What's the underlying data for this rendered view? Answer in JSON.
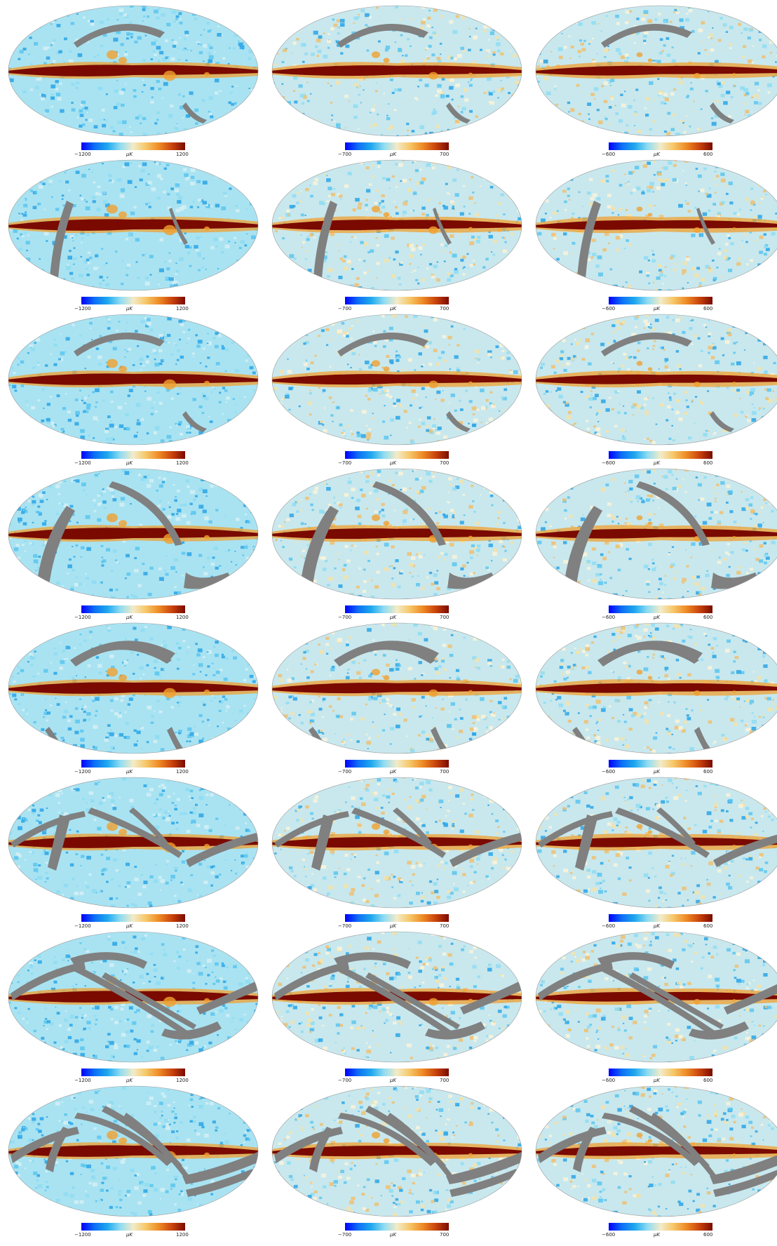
{
  "colors": {
    "background": "#ffffff",
    "mask_gray": "#808080",
    "cold_blue": "#1a8fe0",
    "light_cyan": "#a9e3f2",
    "cream": "#f4e6b4",
    "orange": "#f0a030",
    "dark_red": "#7a0a00"
  },
  "colormap": [
    "#0000ff",
    "#0d6ef5",
    "#1ea8ee",
    "#8fdcf2",
    "#f3ebc8",
    "#f6c667",
    "#ee8a25",
    "#c9430c",
    "#7a0a00"
  ],
  "columns": [
    {
      "scale": {
        "min": "−1200",
        "unit": "μK",
        "max": "1200"
      }
    },
    {
      "scale": {
        "min": "−700",
        "unit": "μK",
        "max": "700"
      }
    },
    {
      "scale": {
        "min": "−600",
        "unit": "μK",
        "max": "600"
      }
    }
  ],
  "row_count": 8,
  "map_projection": "mollweide",
  "map_content": "full-sky temperature maps with galactic-plane emission and gray masked scan stripes"
}
